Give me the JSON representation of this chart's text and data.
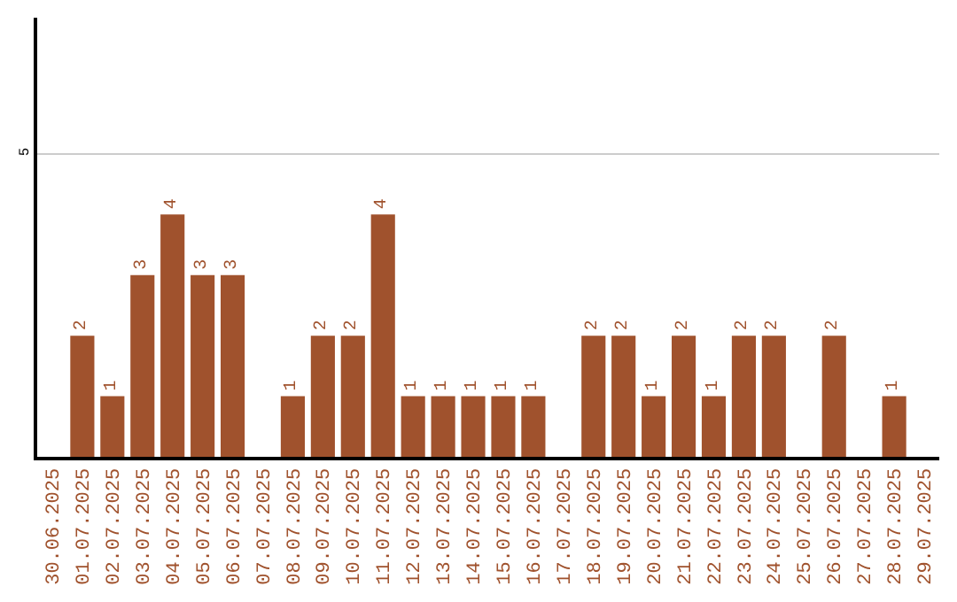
{
  "chart_data": {
    "type": "bar",
    "categories": [
      "30.06.2025",
      "01.07.2025",
      "02.07.2025",
      "03.07.2025",
      "04.07.2025",
      "05.07.2025",
      "06.07.2025",
      "07.07.2025",
      "08.07.2025",
      "09.07.2025",
      "10.07.2025",
      "11.07.2025",
      "12.07.2025",
      "13.07.2025",
      "14.07.2025",
      "15.07.2025",
      "16.07.2025",
      "17.07.2025",
      "18.07.2025",
      "19.07.2025",
      "20.07.2025",
      "21.07.2025",
      "22.07.2025",
      "23.07.2025",
      "24.07.2025",
      "25.07.2025",
      "26.07.2025",
      "27.07.2025",
      "28.07.2025",
      "29.07.2025"
    ],
    "values": [
      null,
      2,
      1,
      3,
      4,
      3,
      3,
      null,
      1,
      2,
      2,
      4,
      1,
      1,
      1,
      1,
      1,
      null,
      2,
      2,
      1,
      2,
      1,
      2,
      2,
      null,
      2,
      null,
      1,
      null
    ],
    "value_labels": [
      null,
      "2",
      "1",
      "3",
      "4",
      "3",
      "3",
      null,
      "1",
      "2",
      "2",
      "4",
      "1",
      "1",
      "1",
      "1",
      "1",
      null,
      "2",
      "2",
      "1",
      "2",
      "1",
      "2",
      "2",
      null,
      "2",
      null,
      "1",
      null
    ],
    "color": "#a0522d",
    "ylim": [
      0,
      7.25
    ],
    "yticks": [
      5
    ],
    "grid": "y",
    "legend": false
  }
}
